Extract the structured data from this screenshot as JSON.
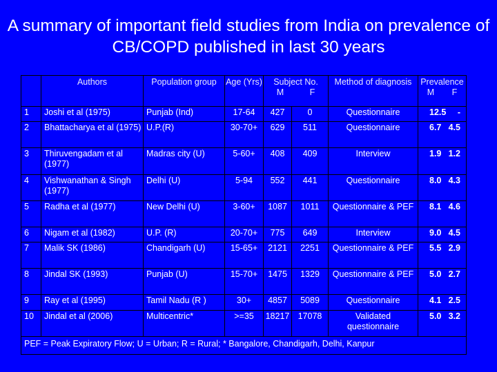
{
  "title": "A summary of important field studies from India on prevalence of CB/COPD published in last 30 years",
  "headers": {
    "authors": "Authors",
    "population": "Population group",
    "age": "Age (Yrs)",
    "subject_no": "Subject No.",
    "subject_m": "M",
    "subject_f": "F",
    "method": "Method of diagnosis",
    "prevalence": "Prevalence",
    "prev_m": "M",
    "prev_f": "F"
  },
  "rows": [
    {
      "no": "1",
      "authors": "Joshi et al (1975)",
      "population": "Punjab (Ind)",
      "age": "17-64",
      "m": "427",
      "f": "0",
      "method": "Questionnaire",
      "prev_m": "12.5",
      "prev_f": "-"
    },
    {
      "no": "2",
      "authors": "Bhattacharya et al (1975)",
      "population": "U.P.(R)",
      "age": "30-70+",
      "m": "629",
      "f": "511",
      "method": "Questionnaire",
      "prev_m": "6.7",
      "prev_f": "4.5"
    },
    {
      "no": "3",
      "authors": "Thiruvengadam et al (1977)",
      "population": "Madras city (U)",
      "age": "5-60+",
      "m": "408",
      "f": "409",
      "method": "Interview",
      "prev_m": "1.9",
      "prev_f": "1.2"
    },
    {
      "no": "4",
      "authors": "Vishwanathan & Singh (1977)",
      "population": "Delhi (U)",
      "age": "5-94",
      "m": "552",
      "f": "441",
      "method": "Questionnaire",
      "prev_m": "8.0",
      "prev_f": "4.3"
    },
    {
      "no": "5",
      "authors": "Radha et al (1977)",
      "population": "New Delhi (U)",
      "age": "3-60+",
      "m": "1087",
      "f": "1011",
      "method": "Questionnaire & PEF",
      "prev_m": "8.1",
      "prev_f": "4.6"
    },
    {
      "no": "6",
      "authors": "Nigam et al (1982)",
      "population": "U.P. (R)",
      "age": "20-70+",
      "m": "775",
      "f": "649",
      "method": "Interview",
      "prev_m": "9.0",
      "prev_f": "4.5"
    },
    {
      "no": "7",
      "authors": "Malik SK (1986)",
      "population": "Chandigarh (U)",
      "age": "15-65+",
      "m": "2121",
      "f": "2251",
      "method": "Questionnaire & PEF",
      "prev_m": "5.5",
      "prev_f": "2.9"
    },
    {
      "no": "8",
      "authors": "Jindal SK (1993)",
      "population": "Punjab (U)",
      "age": "15-70+",
      "m": "1475",
      "f": "1329",
      "method": "Questionnaire & PEF",
      "prev_m": "5.0",
      "prev_f": "2.7"
    },
    {
      "no": "9",
      "authors": "Ray et al (1995)",
      "population": "Tamil Nadu (R )",
      "age": "30+",
      "m": "4857",
      "f": "5089",
      "method": "Questionnaire",
      "prev_m": "4.1",
      "prev_f": "2.5"
    },
    {
      "no": "10",
      "authors": "Jindal et al (2006)",
      "population": "Multicentric*",
      "age": ">=35",
      "m": "18217",
      "f": "17078",
      "method": "Validated questionnaire",
      "prev_m": "5.0",
      "prev_f": "3.2"
    }
  ],
  "footnote": "PEF = Peak Expiratory Flow;  U = Urban;  R = Rural;  * Bangalore, Chandigarh, Delhi, Kanpur"
}
